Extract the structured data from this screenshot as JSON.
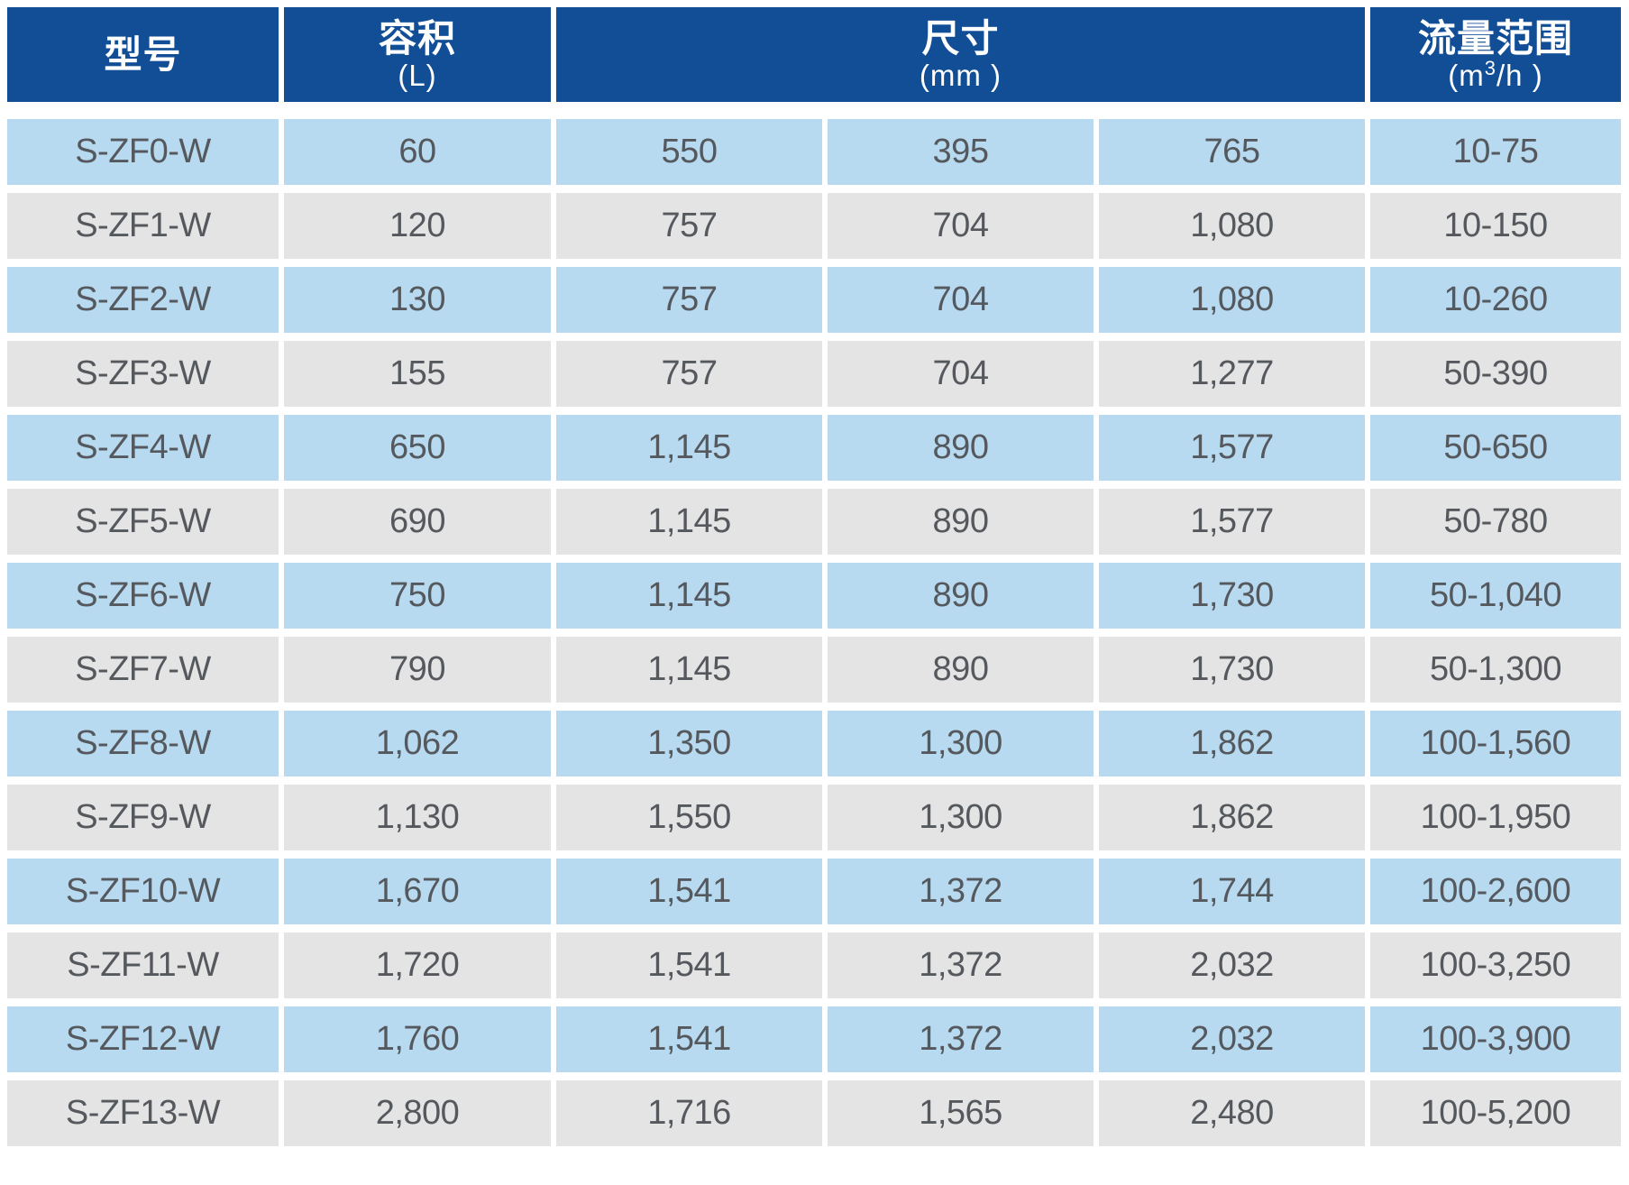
{
  "chart_data": {
    "type": "table",
    "columns": [
      {
        "title": "型号",
        "unit": ""
      },
      {
        "title": "容积",
        "unit": "(L)"
      },
      {
        "title": "尺寸",
        "unit": "(mm )",
        "span": 3
      },
      {
        "title": "流量范围",
        "unit_prefix": "(m",
        "unit_sup": "3",
        "unit_suffix": "/h )"
      }
    ],
    "column_meanings": [
      "model",
      "volume_L",
      "dimension_1_mm",
      "dimension_2_mm",
      "dimension_3_mm",
      "flow_range_m3h"
    ],
    "rows": [
      [
        "S-ZF0-W",
        "60",
        "550",
        "395",
        "765",
        "10-75"
      ],
      [
        "S-ZF1-W",
        "120",
        "757",
        "704",
        "1,080",
        "10-150"
      ],
      [
        "S-ZF2-W",
        "130",
        "757",
        "704",
        "1,080",
        "10-260"
      ],
      [
        "S-ZF3-W",
        "155",
        "757",
        "704",
        "1,277",
        "50-390"
      ],
      [
        "S-ZF4-W",
        "650",
        "1,145",
        "890",
        "1,577",
        "50-650"
      ],
      [
        "S-ZF5-W",
        "690",
        "1,145",
        "890",
        "1,577",
        "50-780"
      ],
      [
        "S-ZF6-W",
        "750",
        "1,145",
        "890",
        "1,730",
        "50-1,040"
      ],
      [
        "S-ZF7-W",
        "790",
        "1,145",
        "890",
        "1,730",
        "50-1,300"
      ],
      [
        "S-ZF8-W",
        "1,062",
        "1,350",
        "1,300",
        "1,862",
        "100-1,560"
      ],
      [
        "S-ZF9-W",
        "1,130",
        "1,550",
        "1,300",
        "1,862",
        "100-1,950"
      ],
      [
        "S-ZF10-W",
        "1,670",
        "1,541",
        "1,372",
        "1,744",
        "100-2,600"
      ],
      [
        "S-ZF11-W",
        "1,720",
        "1,541",
        "1,372",
        "2,032",
        "100-3,250"
      ],
      [
        "S-ZF12-W",
        "1,760",
        "1,541",
        "1,372",
        "2,032",
        "100-3,900"
      ],
      [
        "S-ZF13-W",
        "2,800",
        "1,716",
        "1,565",
        "2,480",
        "100-5,200"
      ]
    ]
  },
  "colors": {
    "header_bg": "#114E96",
    "header_text": "#FFFFFF",
    "row_blue": "#B7DAF0",
    "row_gray": "#E4E4E4",
    "cell_text": "#55595E",
    "page_bg": "#FFFFFF"
  }
}
